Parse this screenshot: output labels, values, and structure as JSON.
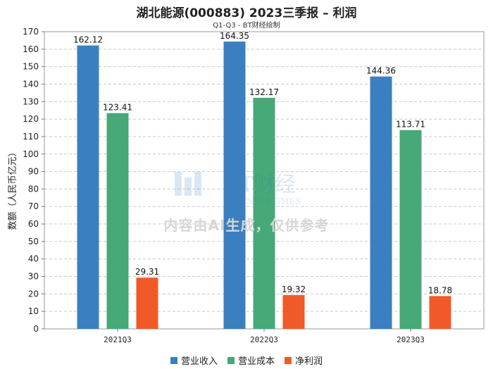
{
  "header": {
    "title": "湖北能源(000883) 2023三季报 – 利润",
    "subtitle": "Q1-Q3 - BT财经绘制"
  },
  "watermark": {
    "logo_text": "BT财经",
    "logo_sub": "BUSINESSTIMES",
    "notice": "内容由AI生成，仅供参考"
  },
  "chart_data": {
    "type": "bar",
    "title": "湖北能源(000883) 2023三季报 – 利润",
    "subtitle": "Q1-Q3 - BT财经绘制",
    "xlabel": "",
    "ylabel": "数额（人民币亿元）",
    "ylim": [
      0,
      170
    ],
    "yticks": [
      0,
      10,
      20,
      30,
      40,
      50,
      60,
      70,
      80,
      90,
      100,
      110,
      120,
      130,
      140,
      150,
      160,
      170
    ],
    "grid": true,
    "legend_position": "bottom",
    "categories": [
      "2021Q3",
      "2022Q3",
      "2023Q3"
    ],
    "series": [
      {
        "name": "营业收入",
        "color": "#3a80c0",
        "values": [
          162.12,
          164.35,
          144.36
        ]
      },
      {
        "name": "营业成本",
        "color": "#47a878",
        "values": [
          123.41,
          132.17,
          113.71
        ]
      },
      {
        "name": "净利润",
        "color": "#f05a28",
        "values": [
          29.31,
          19.32,
          18.78
        ]
      }
    ]
  }
}
